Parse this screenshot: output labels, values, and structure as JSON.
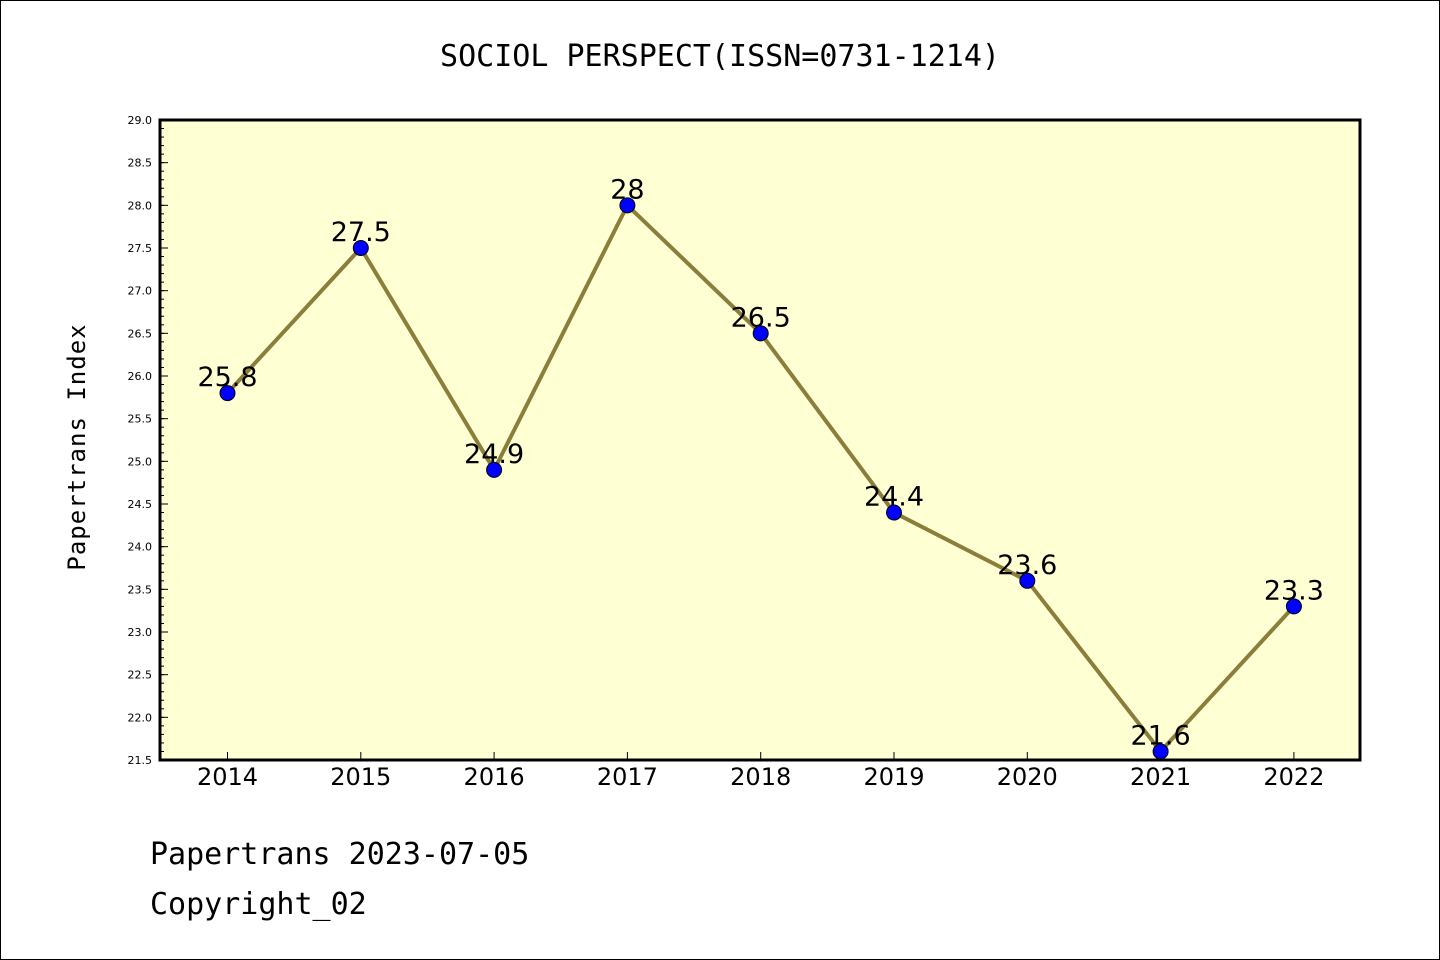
{
  "chart_data": {
    "type": "line",
    "title": "SOCIOL PERSPECT(ISSN=0731-1214)",
    "xlabel": "",
    "ylabel": "Papertrans Index",
    "categories": [
      "2014",
      "2015",
      "2016",
      "2017",
      "2018",
      "2019",
      "2020",
      "2021",
      "2022"
    ],
    "series": [
      {
        "values": [
          25.8,
          27.5,
          24.9,
          28,
          26.5,
          24.4,
          23.6,
          21.6,
          23.3
        ],
        "labels": [
          "25.8",
          "27.5",
          "24.9",
          "28",
          "26.5",
          "24.4",
          "23.6",
          "21.6",
          "23.3"
        ]
      }
    ],
    "ylim": [
      21.5,
      29.0
    ],
    "yticks": [
      "21.5",
      "22.0",
      "22.5",
      "23.0",
      "23.5",
      "24.0",
      "24.5",
      "25.0",
      "25.5",
      "26.0",
      "26.5",
      "27.0",
      "27.5",
      "28.0",
      "28.5",
      "29.0"
    ],
    "grid": false,
    "colors": {
      "plot_background": "#ffffd4",
      "line": "#8b7d3a",
      "marker": "#0000ff"
    }
  },
  "footer": {
    "line1": "Papertrans 2023-07-05",
    "line2": "Copyright_02"
  }
}
